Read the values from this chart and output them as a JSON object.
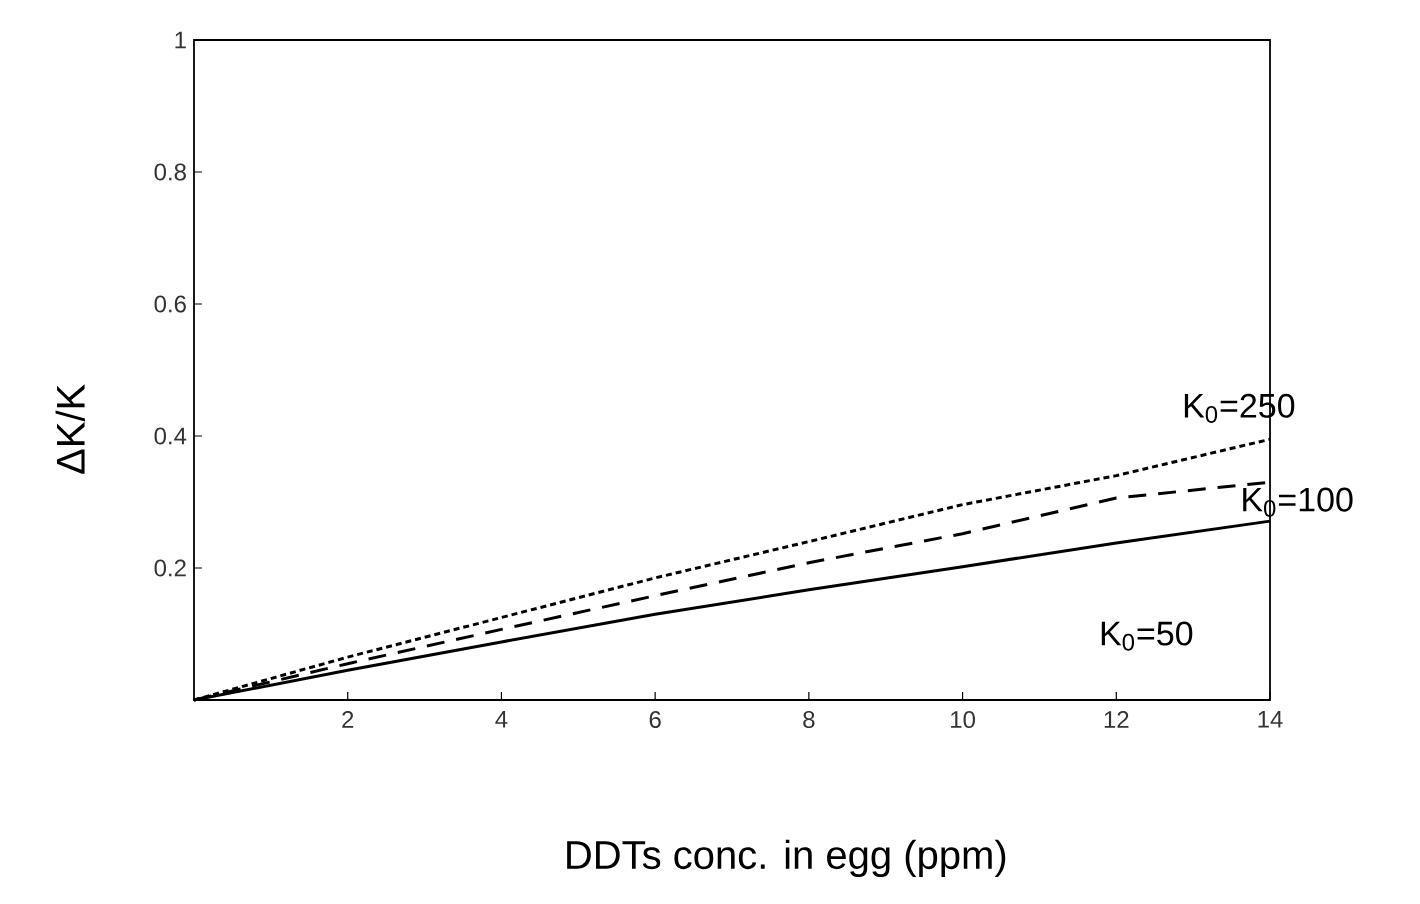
{
  "chart_data": {
    "type": "line",
    "xlabel": "DDTs conc. in egg (ppm)",
    "ylabel": "ΔK/K",
    "x": [
      0,
      2,
      4,
      6,
      8,
      10,
      12,
      14
    ],
    "series": [
      {
        "name": "K$_{0}$=50",
        "color": "#000000",
        "line_style": "solid",
        "values": [
          0,
          0.045,
          0.088,
          0.13,
          0.167,
          0.202,
          0.238,
          0.271
        ]
      },
      {
        "name": "K$_{0}$=100",
        "color": "#000000",
        "line_style": "dashed",
        "values": [
          0,
          0.055,
          0.107,
          0.158,
          0.208,
          0.252,
          0.306,
          0.33
        ]
      },
      {
        "name": "K$_{0}$=250",
        "color": "#000000",
        "line_style": "dotted",
        "values": [
          0,
          0.065,
          0.125,
          0.185,
          0.24,
          0.296,
          0.34,
          0.395
        ]
      }
    ],
    "xlim": [
      0,
      14
    ],
    "ylim": [
      0,
      1
    ],
    "xticks": [
      2,
      4,
      6,
      8,
      10,
      12,
      14
    ],
    "yticks": [
      0.2,
      0.4,
      0.6,
      0.8,
      1
    ],
    "grid": false,
    "legend": false
  }
}
